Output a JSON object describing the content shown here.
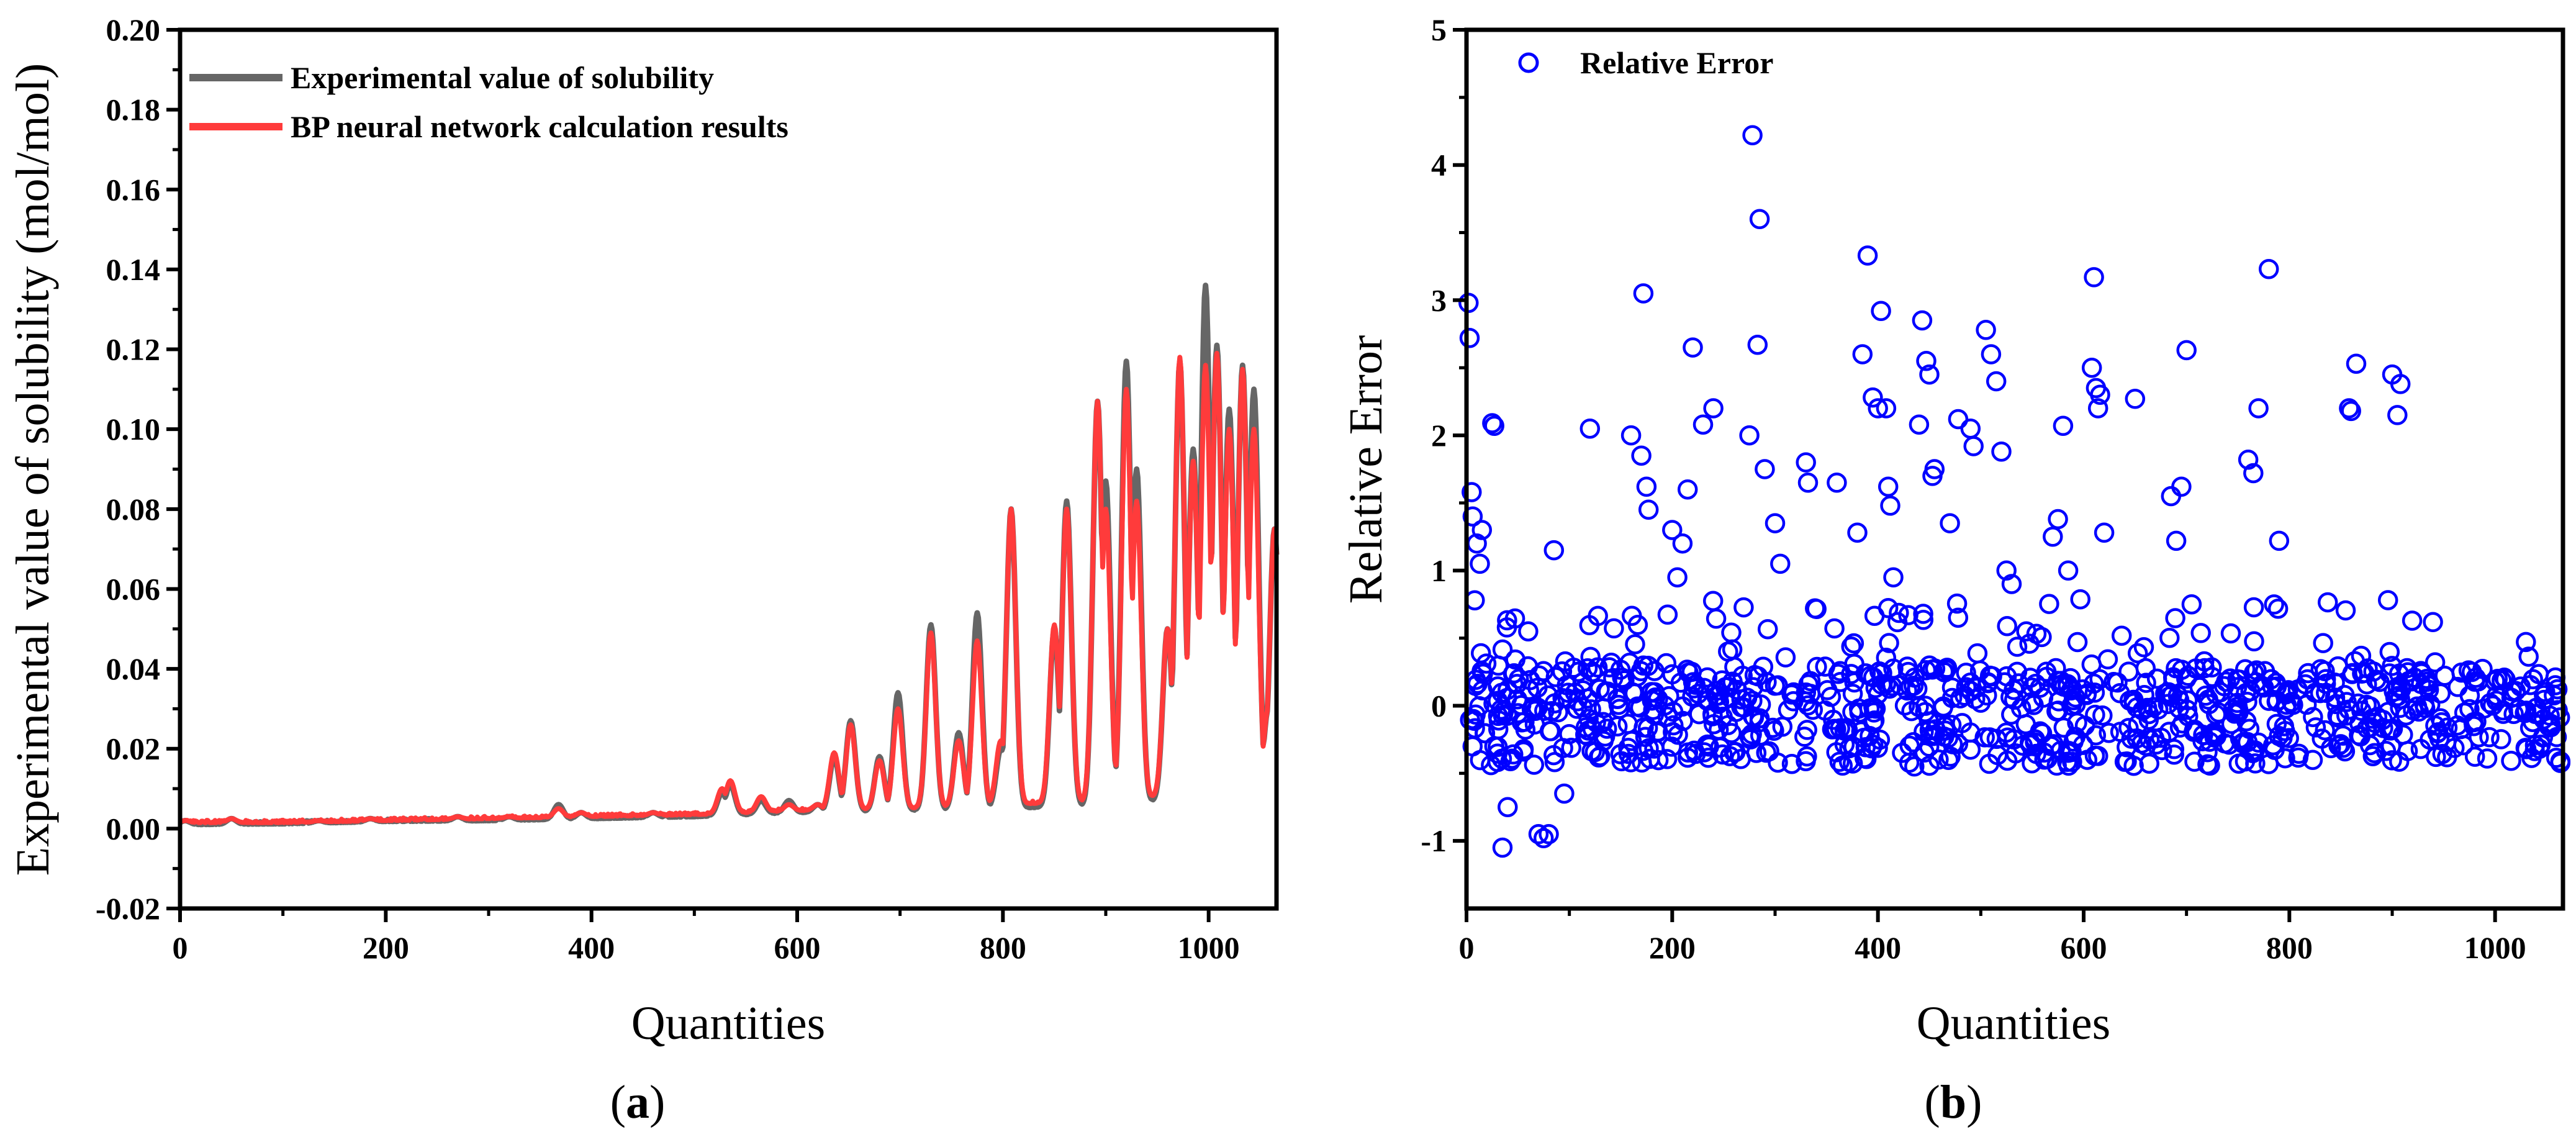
{
  "chart_data": [
    {
      "type": "line",
      "panel_label": {
        "open": "(",
        "letter": "a",
        "close": ")"
      },
      "title": "",
      "xlabel": "Quantities",
      "ylabel": "Experimental value of solubility (mol/mol)",
      "xlim": [
        0,
        1066
      ],
      "ylim": [
        -0.02,
        0.2
      ],
      "xticks": [
        "0",
        "200",
        "400",
        "600",
        "800",
        "1000"
      ],
      "yticks": [
        "-0.02",
        "0.00",
        "0.02",
        "0.04",
        "0.06",
        "0.08",
        "0.10",
        "0.12",
        "0.14",
        "0.16",
        "0.18",
        "0.20"
      ],
      "grid": false,
      "legend_position": "top-left",
      "series": [
        {
          "name": "Experimental value of solubility",
          "color": "#666666",
          "baseline": [
            [
              0,
              0.001
            ],
            [
              100,
              0.0012
            ],
            [
              200,
              0.0018
            ],
            [
              300,
              0.002
            ],
            [
              400,
              0.0025
            ],
            [
              500,
              0.003
            ],
            [
              600,
              0.004
            ],
            [
              700,
              0.0045
            ],
            [
              800,
              0.005
            ],
            [
              900,
              0.006
            ],
            [
              1000,
              0.008
            ],
            [
              1066,
              0.007
            ]
          ],
          "peaks": [
            [
              5,
              0.002
            ],
            [
              50,
              0.0025
            ],
            [
              135,
              0.002
            ],
            [
              185,
              0.0025
            ],
            [
              270,
              0.003
            ],
            [
              320,
              0.003
            ],
            [
              368,
              0.006
            ],
            [
              390,
              0.004
            ],
            [
              460,
              0.004
            ],
            [
              500,
              0.003
            ],
            [
              527,
              0.009
            ],
            [
              535,
              0.011
            ],
            [
              565,
              0.007
            ],
            [
              592,
              0.007
            ],
            [
              620,
              0.006
            ],
            [
              636,
              0.018
            ],
            [
              652,
              0.027
            ],
            [
              680,
              0.018
            ],
            [
              698,
              0.034
            ],
            [
              730,
              0.051
            ],
            [
              757,
              0.024
            ],
            [
              775,
              0.054
            ],
            [
              798,
              0.02
            ],
            [
              808,
              0.08
            ],
            [
              850,
              0.05
            ],
            [
              862,
              0.082
            ],
            [
              892,
              0.107
            ],
            [
              900,
              0.087
            ],
            [
              920,
              0.117
            ],
            [
              930,
              0.09
            ],
            [
              960,
              0.05
            ],
            [
              972,
              0.117
            ],
            [
              985,
              0.095
            ],
            [
              997,
              0.136
            ],
            [
              1008,
              0.121
            ],
            [
              1020,
              0.105
            ],
            [
              1033,
              0.116
            ],
            [
              1044,
              0.11
            ],
            [
              1058,
              0.03
            ],
            [
              1064,
              0.075
            ]
          ]
        },
        {
          "name": "BP neural network calculation results",
          "color": "#ff3b3b",
          "baseline": [
            [
              0,
              0.0015
            ],
            [
              100,
              0.0015
            ],
            [
              200,
              0.002
            ],
            [
              300,
              0.0025
            ],
            [
              400,
              0.003
            ],
            [
              500,
              0.0035
            ],
            [
              600,
              0.0045
            ],
            [
              700,
              0.005
            ],
            [
              800,
              0.006
            ],
            [
              900,
              0.007
            ],
            [
              1000,
              0.009
            ],
            [
              1066,
              0.008
            ]
          ],
          "peaks": [
            [
              5,
              0.002
            ],
            [
              50,
              0.0025
            ],
            [
              135,
              0.002
            ],
            [
              185,
              0.0025
            ],
            [
              270,
              0.003
            ],
            [
              320,
              0.003
            ],
            [
              368,
              0.005
            ],
            [
              390,
              0.004
            ],
            [
              460,
              0.004
            ],
            [
              500,
              0.003
            ],
            [
              527,
              0.01
            ],
            [
              535,
              0.012
            ],
            [
              565,
              0.008
            ],
            [
              592,
              0.006
            ],
            [
              620,
              0.006
            ],
            [
              636,
              0.019
            ],
            [
              652,
              0.026
            ],
            [
              680,
              0.017
            ],
            [
              698,
              0.03
            ],
            [
              730,
              0.049
            ],
            [
              757,
              0.022
            ],
            [
              775,
              0.047
            ],
            [
              798,
              0.022
            ],
            [
              808,
              0.08
            ],
            [
              850,
              0.051
            ],
            [
              862,
              0.08
            ],
            [
              892,
              0.107
            ],
            [
              900,
              0.08
            ],
            [
              920,
              0.11
            ],
            [
              930,
              0.082
            ],
            [
              960,
              0.05
            ],
            [
              972,
              0.118
            ],
            [
              985,
              0.092
            ],
            [
              997,
              0.116
            ],
            [
              1008,
              0.119
            ],
            [
              1020,
              0.1
            ],
            [
              1033,
              0.115
            ],
            [
              1044,
              0.1
            ],
            [
              1058,
              0.03
            ],
            [
              1064,
              0.075
            ]
          ]
        }
      ]
    },
    {
      "type": "scatter",
      "panel_label": {
        "open": "(",
        "letter": "b",
        "close": ")"
      },
      "title": "",
      "xlabel": "Quantities",
      "ylabel": "Relative Error",
      "xlim": [
        0,
        1066
      ],
      "ylim": [
        -1.5,
        5
      ],
      "xticks": [
        "0",
        "200",
        "400",
        "600",
        "800",
        "1000"
      ],
      "yticks": [
        "-1",
        "0",
        "1",
        "2",
        "3",
        "4",
        "5"
      ],
      "grid": false,
      "legend_position": "top-left",
      "series": [
        {
          "name": "Relative Error",
          "color": "#0000ff",
          "marker": "open-circle",
          "outliers": [
            [
              2,
              2.98
            ],
            [
              3,
              2.72
            ],
            [
              5,
              1.58
            ],
            [
              6,
              1.4
            ],
            [
              8,
              0.78
            ],
            [
              10,
              1.2
            ],
            [
              13,
              1.05
            ],
            [
              15,
              1.3
            ],
            [
              25,
              2.09
            ],
            [
              27,
              2.07
            ],
            [
              35,
              -1.05
            ],
            [
              40,
              -0.75
            ],
            [
              60,
              0.55
            ],
            [
              70,
              -0.95
            ],
            [
              75,
              -0.98
            ],
            [
              80,
              -0.95
            ],
            [
              85,
              1.15
            ],
            [
              95,
              -0.65
            ],
            [
              120,
              2.05
            ],
            [
              160,
              2.0
            ],
            [
              170,
              1.85
            ],
            [
              172,
              3.05
            ],
            [
              175,
              1.62
            ],
            [
              177,
              1.45
            ],
            [
              200,
              1.3
            ],
            [
              205,
              0.95
            ],
            [
              210,
              1.2
            ],
            [
              215,
              1.6
            ],
            [
              220,
              2.65
            ],
            [
              230,
              2.08
            ],
            [
              240,
              2.2
            ],
            [
              275,
              2.0
            ],
            [
              278,
              4.22
            ],
            [
              285,
              3.6
            ],
            [
              283,
              2.67
            ],
            [
              290,
              1.75
            ],
            [
              300,
              1.35
            ],
            [
              305,
              1.05
            ],
            [
              330,
              1.8
            ],
            [
              332,
              1.65
            ],
            [
              360,
              1.65
            ],
            [
              380,
              1.28
            ],
            [
              385,
              2.6
            ],
            [
              390,
              3.33
            ],
            [
              395,
              2.28
            ],
            [
              400,
              2.2
            ],
            [
              403,
              2.92
            ],
            [
              408,
              2.2
            ],
            [
              410,
              1.62
            ],
            [
              412,
              1.48
            ],
            [
              415,
              0.95
            ],
            [
              440,
              2.08
            ],
            [
              443,
              2.85
            ],
            [
              447,
              2.55
            ],
            [
              450,
              2.45
            ],
            [
              453,
              1.7
            ],
            [
              455,
              1.75
            ],
            [
              470,
              1.35
            ],
            [
              478,
              2.12
            ],
            [
              490,
              2.05
            ],
            [
              493,
              1.92
            ],
            [
              505,
              2.78
            ],
            [
              510,
              2.6
            ],
            [
              515,
              2.4
            ],
            [
              520,
              1.88
            ],
            [
              525,
              1.0
            ],
            [
              530,
              0.9
            ],
            [
              570,
              1.25
            ],
            [
              575,
              1.38
            ],
            [
              580,
              2.07
            ],
            [
              585,
              1.0
            ],
            [
              608,
              2.5
            ],
            [
              610,
              3.17
            ],
            [
              612,
              2.35
            ],
            [
              614,
              2.2
            ],
            [
              616,
              2.3
            ],
            [
              620,
              1.28
            ],
            [
              650,
              2.27
            ],
            [
              685,
              1.55
            ],
            [
              690,
              1.22
            ],
            [
              695,
              1.62
            ],
            [
              700,
              2.63
            ],
            [
              705,
              0.75
            ],
            [
              760,
              1.82
            ],
            [
              765,
              1.72
            ],
            [
              770,
              2.2
            ],
            [
              780,
              3.23
            ],
            [
              790,
              1.22
            ],
            [
              858,
              2.2
            ],
            [
              860,
              2.18
            ],
            [
              865,
              2.53
            ],
            [
              900,
              2.45
            ],
            [
              905,
              2.15
            ],
            [
              908,
              2.38
            ]
          ],
          "band": {
            "count": 820,
            "x_range": [
              0,
              1066
            ],
            "y_min": -0.45,
            "y_max": 0.3,
            "seed": 17
          },
          "mid_points": {
            "count": 80,
            "x_range": [
              5,
              1066
            ],
            "y_min": 0.3,
            "y_max": 0.8,
            "seed": 91
          }
        }
      ]
    }
  ]
}
